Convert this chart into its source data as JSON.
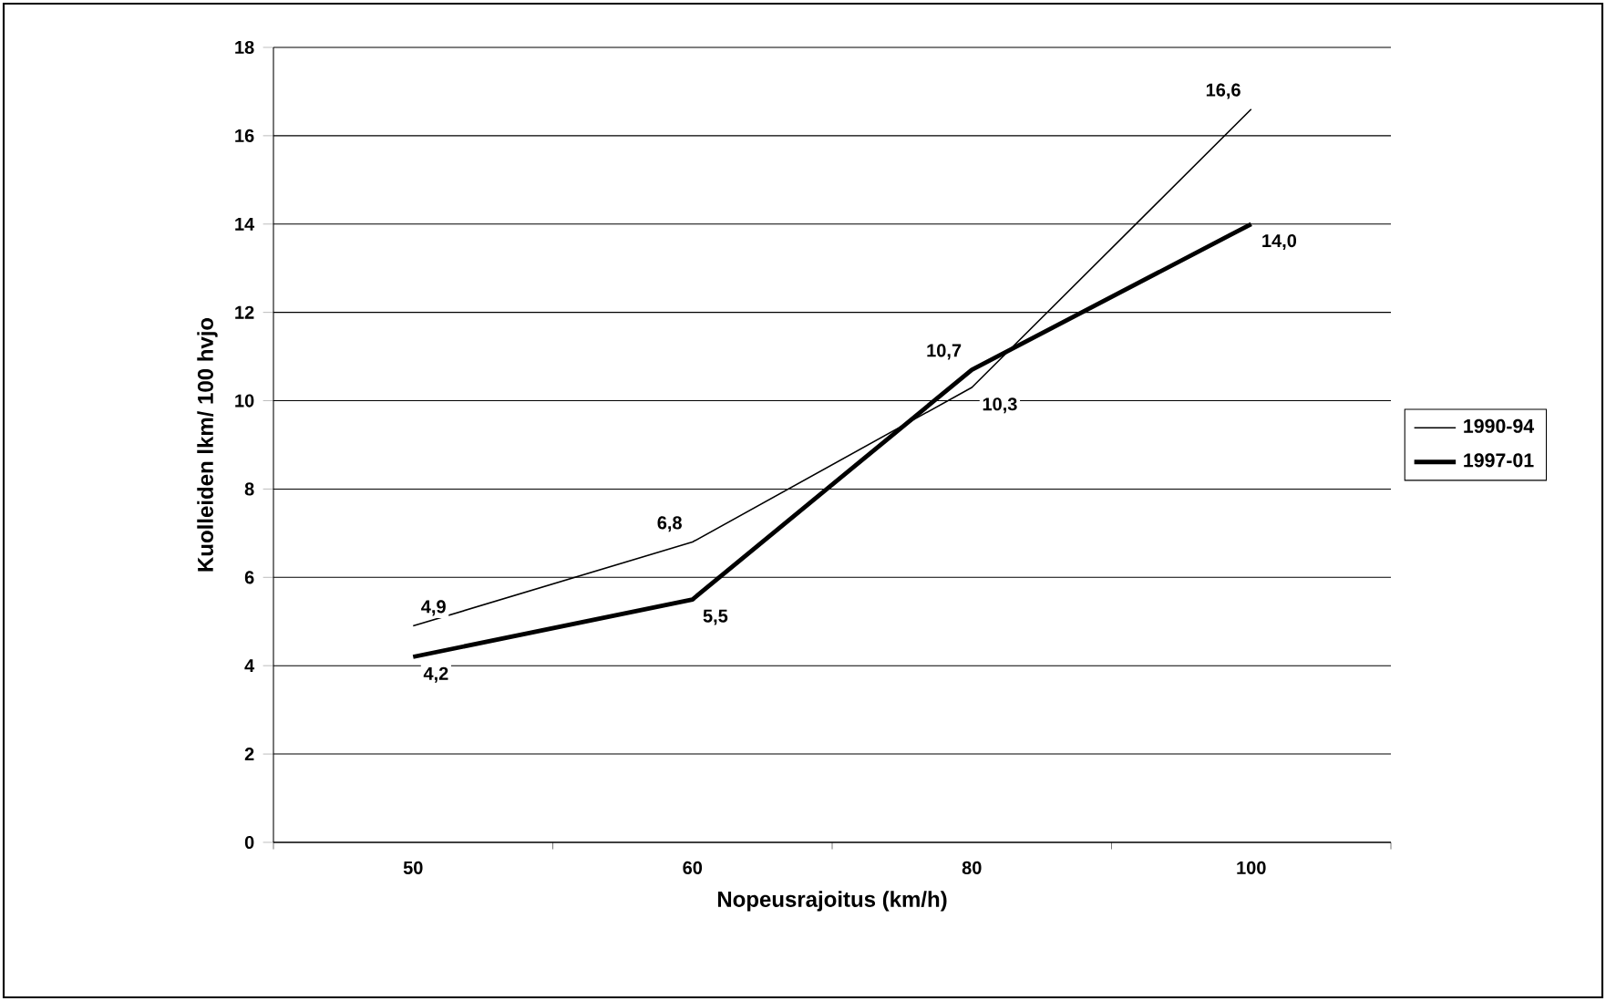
{
  "chart_data": {
    "type": "line",
    "xlabel": "Nopeusrajoitus (km/h)",
    "ylabel": "Kuolleiden lkm/ 100 hvjo",
    "categories": [
      "50",
      "60",
      "80",
      "100"
    ],
    "series": [
      {
        "name": "1990-94",
        "color": "#000000",
        "values": [
          4.9,
          6.8,
          10.3,
          16.6
        ],
        "value_labels": [
          "4,9",
          "6,8",
          "10,3",
          "16,6"
        ]
      },
      {
        "name": "1997-01",
        "color": "#000000",
        "values": [
          4.2,
          5.5,
          10.7,
          14.0
        ],
        "value_labels": [
          "4,2",
          "5,5",
          "10,7",
          "14,0"
        ]
      }
    ],
    "ylim": [
      0,
      18
    ],
    "yticks": [
      0,
      2,
      4,
      6,
      8,
      10,
      12,
      14,
      16,
      18
    ],
    "grid": "y",
    "legend": "right",
    "marker": "none",
    "line_style": "solid"
  }
}
